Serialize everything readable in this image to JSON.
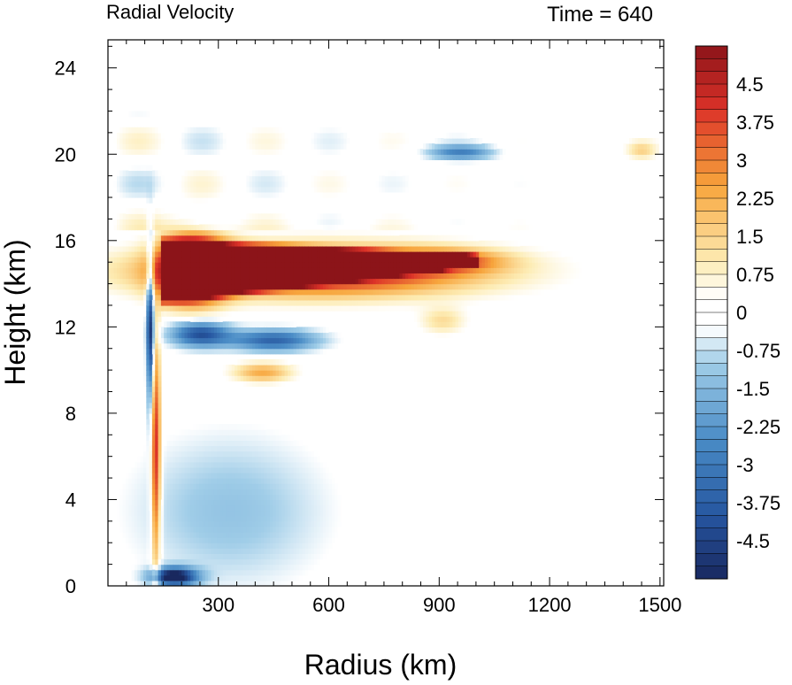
{
  "chart_data": {
    "type": "heatmap",
    "title_left": "Radial Velocity",
    "title_right": "Time = 640",
    "xlabel": "Radius (km)",
    "ylabel": "Height (km)",
    "xlim": [
      0,
      1510
    ],
    "ylim": [
      0,
      25.3
    ],
    "x_ticks": [
      300,
      600,
      900,
      1200,
      1500
    ],
    "y_ticks": [
      0,
      4,
      8,
      12,
      16,
      20,
      24
    ],
    "colorbar": {
      "min": -5.25,
      "max": 5.25,
      "step": 0.25,
      "tick_labels": [
        "4.5",
        "3.75",
        "3",
        "2.25",
        "1.5",
        "0.75",
        "0",
        "-0.75",
        "-1.5",
        "-2.25",
        "-3",
        "-3.75",
        "-4.5"
      ],
      "tick_values": [
        4.5,
        3.75,
        3,
        2.25,
        1.5,
        0.75,
        0,
        -0.75,
        -1.5,
        -2.25,
        -3,
        -3.75,
        -4.5
      ]
    },
    "features": [
      {
        "name": "upper-level outflow jet",
        "r": 560,
        "z": 14.6,
        "dr": 430,
        "dz": 1.1,
        "v": 5.4
      },
      {
        "name": "outflow jet tip",
        "r": 900,
        "z": 15.1,
        "dr": 160,
        "dz": 0.5,
        "v": 3.0
      },
      {
        "name": "inner outflow core",
        "r": 230,
        "z": 14.7,
        "dr": 90,
        "dz": 1.6,
        "v": 6.0
      },
      {
        "name": "inflow band below outflow",
        "r": 250,
        "z": 11.7,
        "dr": 80,
        "dz": 0.6,
        "v": -4.2
      },
      {
        "name": "inflow band below outflow east",
        "r": 450,
        "z": 11.4,
        "dr": 120,
        "dz": 0.5,
        "v": -3.6
      },
      {
        "name": "mid-level outflow",
        "r": 420,
        "z": 9.9,
        "dr": 80,
        "dz": 0.45,
        "v": 2.4
      },
      {
        "name": "boundary layer inflow",
        "r": 180,
        "z": 0.45,
        "dr": 60,
        "dz": 0.4,
        "v": -6.0
      },
      {
        "name": "eyewall outflow streak",
        "r": 130,
        "z": 6.0,
        "dr": 12,
        "dz": 5.5,
        "v": 4.5
      },
      {
        "name": "eyewall inflow streak",
        "r": 115,
        "z": 12.0,
        "dr": 10,
        "dz": 3.5,
        "v": -5.0
      },
      {
        "name": "upper inflow band",
        "r": 960,
        "z": 20.1,
        "dr": 90,
        "dz": 0.35,
        "v": -2.6
      },
      {
        "name": "outer outflow patch",
        "r": 910,
        "z": 12.3,
        "dr": 60,
        "dz": 0.6,
        "v": 1.3
      },
      {
        "name": "far outflow patch",
        "r": 1450,
        "z": 20.2,
        "dr": 40,
        "dz": 0.4,
        "v": 1.4
      }
    ]
  }
}
